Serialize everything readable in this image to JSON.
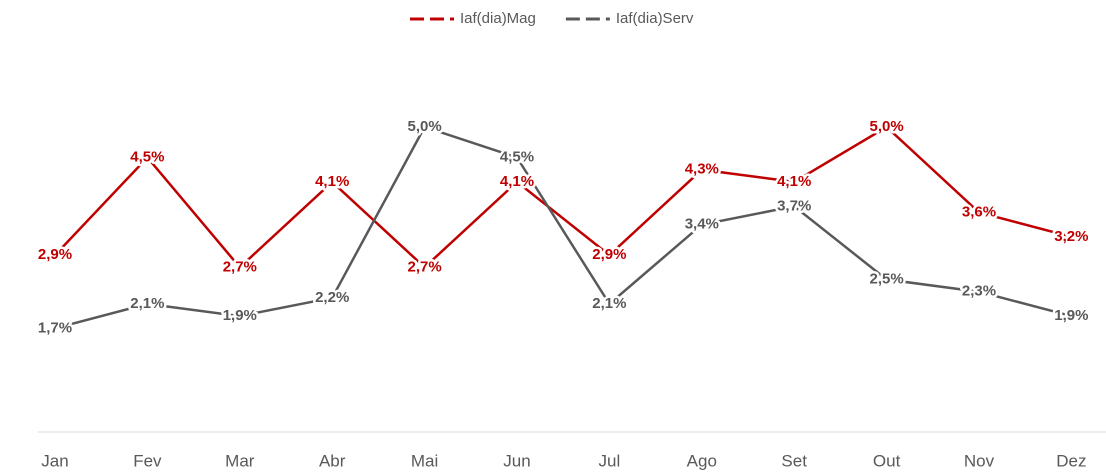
{
  "chart_data": {
    "type": "line",
    "categories": [
      "Jan",
      "Fev",
      "Mar",
      "Abr",
      "Mai",
      "Jun",
      "Jul",
      "Ago",
      "Set",
      "Out",
      "Nov",
      "Dez"
    ],
    "series": [
      {
        "name": "Iaf(dia)Mag",
        "color": "#c00000",
        "values": [
          2.9,
          4.5,
          2.7,
          4.1,
          2.7,
          4.1,
          2.9,
          4.3,
          4.1,
          5.0,
          3.6,
          3.2
        ],
        "value_labels": [
          "2,9%",
          "4,5%",
          "2,7%",
          "4,1%",
          "2,7%",
          "4,1%",
          "2,9%",
          "4,3%",
          "4,1%",
          "5,0%",
          "3,6%",
          "3,2%"
        ]
      },
      {
        "name": "Iaf(dia)Serv",
        "color": "#595959",
        "values": [
          1.7,
          2.1,
          1.9,
          2.2,
          5.0,
          4.5,
          2.1,
          3.4,
          3.7,
          2.5,
          2.3,
          1.9
        ],
        "value_labels": [
          "1,7%",
          "2,1%",
          "1,9%",
          "2,2%",
          "5,0%",
          "4,5%",
          "2,1%",
          "3,4%",
          "3,7%",
          "2,5%",
          "2,3%",
          "1,9%"
        ]
      }
    ],
    "legend": "top"
  }
}
